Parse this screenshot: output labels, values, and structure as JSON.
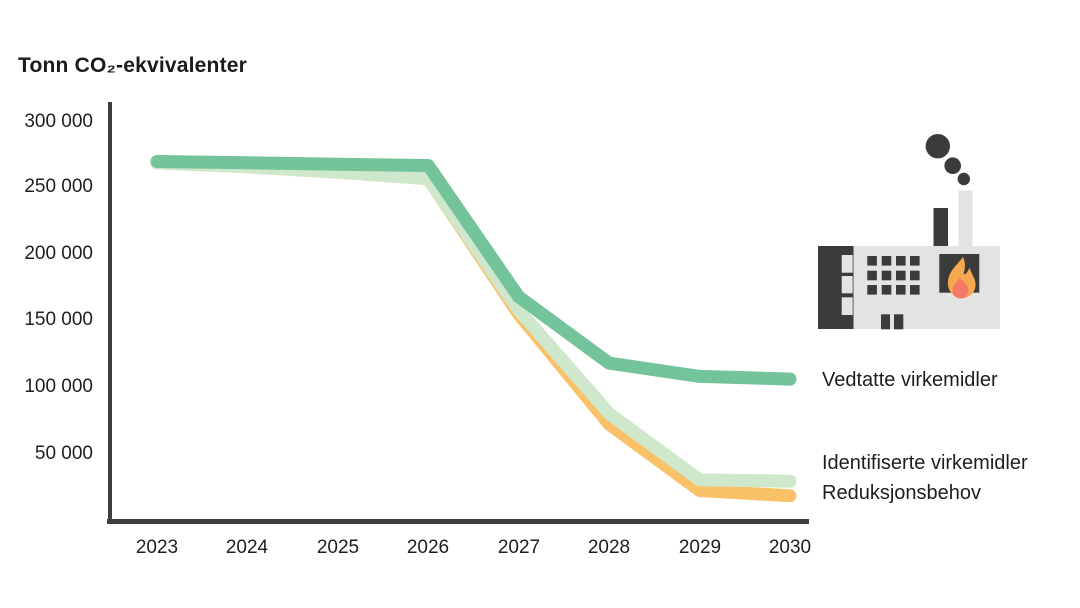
{
  "chart_data": {
    "type": "line",
    "title": "Tonn CO₂-ekvivalenter",
    "xlabel": "",
    "ylabel": "Tonn CO₂-ekvivalenter",
    "x": [
      "2023",
      "2024",
      "2025",
      "2026",
      "2027",
      "2028",
      "2029",
      "2030"
    ],
    "series": [
      {
        "name": "Vedtatte virkemidler",
        "color": "#73C49A",
        "values": [
          270000,
          269000,
          268000,
          267000,
          168000,
          118000,
          108000,
          106000
        ]
      },
      {
        "name": "Identifiserte virkemidler",
        "color": "#CFE8CC",
        "values": [
          269000,
          266000,
          262000,
          257000,
          158000,
          80000,
          30000,
          29000
        ]
      },
      {
        "name": "Reduksjonsbehov",
        "color": "#F9C168",
        "values": [
          269000,
          266000,
          262000,
          257000,
          155000,
          72000,
          22000,
          18000
        ]
      }
    ],
    "ylim": [
      0,
      300000
    ],
    "yticks": [
      {
        "value": 300000,
        "label": "300 000"
      },
      {
        "value": 250000,
        "label": "250 000"
      },
      {
        "value": 200000,
        "label": "200 000"
      },
      {
        "value": 150000,
        "label": "150 000"
      },
      {
        "value": 100000,
        "label": "100 000"
      },
      {
        "value": 50000,
        "label": "50 000"
      }
    ],
    "grid": false,
    "legend_position": "right",
    "axis_color": "#3F3F3F",
    "text_color": "#1E1E1E",
    "line_width": 13
  },
  "icon": {
    "name": "factory-icon",
    "dark": "#3B3B3B",
    "light": "#E3E3E3",
    "flame_outer": "#F6A84E",
    "flame_inner": "#F4796B"
  }
}
